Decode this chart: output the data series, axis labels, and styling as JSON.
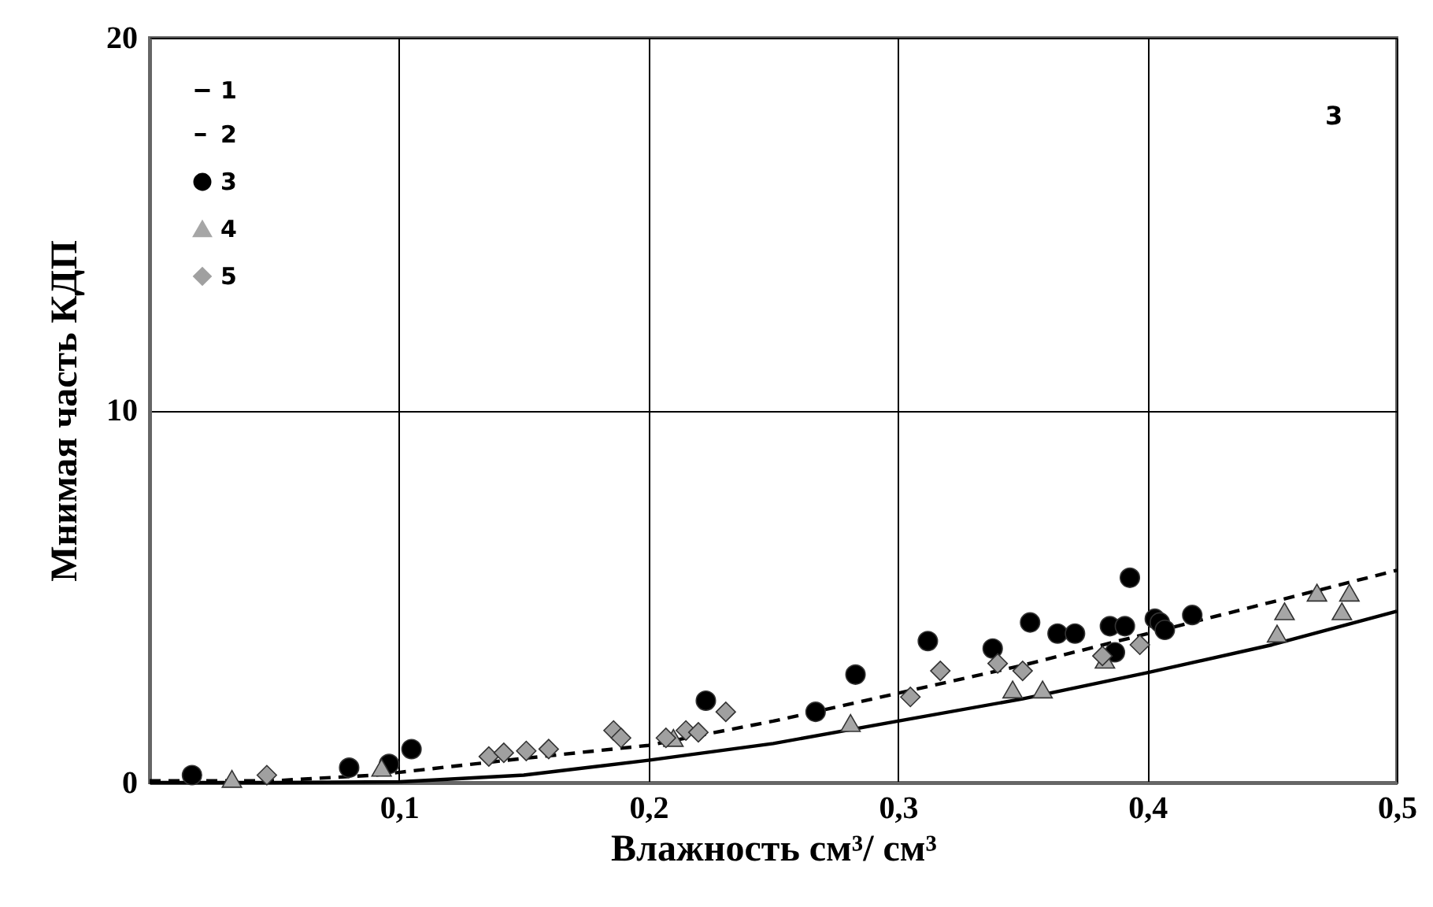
{
  "chart_data": {
    "type": "scatter",
    "xlabel": "Влажность см³/ см³",
    "ylabel": "Мнимая часть КДП",
    "annotations": [
      "3"
    ],
    "xlim": [
      0,
      0.5
    ],
    "ylim": [
      0,
      20
    ],
    "xticks": [
      {
        "value": 0.1,
        "label": "0,1"
      },
      {
        "value": 0.2,
        "label": "0,2"
      },
      {
        "value": 0.3,
        "label": "0,3"
      },
      {
        "value": 0.4,
        "label": "0,4"
      },
      {
        "value": 0.5,
        "label": "0,5"
      }
    ],
    "yticks": [
      0,
      10,
      20
    ],
    "grid": true,
    "legend": "top left",
    "series": [
      {
        "name": "1",
        "type": "line",
        "color": "#000000",
        "line_style": "solid",
        "marker": "none",
        "x": [
          0,
          0.05,
          0.1,
          0.15,
          0.2,
          0.25,
          0.3,
          0.35,
          0.4,
          0.45,
          0.5
        ],
        "values": [
          0,
          0,
          0.02,
          0.2,
          0.6,
          1.05,
          1.65,
          2.25,
          2.95,
          3.7,
          4.6
        ]
      },
      {
        "name": "2",
        "type": "line",
        "color": "#000000",
        "line_style": "dashed",
        "marker": "none",
        "x": [
          0,
          0.05,
          0.09,
          0.15,
          0.2,
          0.25,
          0.3,
          0.35,
          0.4,
          0.45,
          0.5
        ],
        "values": [
          0.05,
          0.05,
          0.2,
          0.65,
          1.0,
          1.65,
          2.4,
          3.15,
          4.0,
          4.85,
          5.7
        ]
      },
      {
        "name": "3",
        "color": "#000000",
        "marker": "circle",
        "x": [
          0.017,
          0.08,
          0.096,
          0.105,
          0.223,
          0.267,
          0.283,
          0.312,
          0.338,
          0.353,
          0.364,
          0.371,
          0.385,
          0.387,
          0.391,
          0.393,
          0.403,
          0.405,
          0.407,
          0.418
        ],
        "values": [
          0.2,
          0.4,
          0.5,
          0.9,
          2.2,
          1.9,
          2.9,
          3.8,
          3.6,
          4.3,
          4.0,
          4.0,
          4.2,
          3.5,
          4.2,
          5.5,
          4.4,
          4.3,
          4.1,
          4.5
        ]
      },
      {
        "name": "4",
        "color": "#a6a6a6",
        "marker": "triangle",
        "x": [
          0.033,
          0.093,
          0.21,
          0.281,
          0.346,
          0.358,
          0.383,
          0.452,
          0.455,
          0.468,
          0.478,
          0.481
        ],
        "values": [
          0.1,
          0.4,
          1.2,
          1.6,
          2.5,
          2.5,
          3.3,
          4.0,
          4.6,
          5.1,
          4.6,
          5.1
        ]
      },
      {
        "name": "5",
        "color": "#a0a0a0",
        "marker": "diamond",
        "x": [
          0.047,
          0.136,
          0.142,
          0.151,
          0.16,
          0.186,
          0.189,
          0.207,
          0.215,
          0.22,
          0.231,
          0.305,
          0.317,
          0.34,
          0.35,
          0.382,
          0.397
        ],
        "values": [
          0.2,
          0.7,
          0.8,
          0.85,
          0.9,
          1.4,
          1.2,
          1.2,
          1.4,
          1.35,
          1.9,
          2.3,
          3.0,
          3.2,
          3.0,
          3.4,
          3.7
        ]
      }
    ]
  }
}
